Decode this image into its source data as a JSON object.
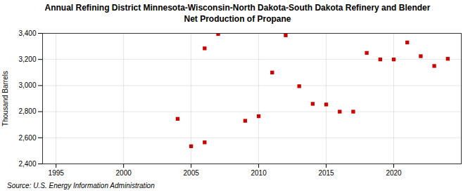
{
  "chart_data": {
    "type": "scatter",
    "title": "Annual Refining District Minnesota-Wisconsin-North Dakota-South Dakota Refinery and Blender\nNet Production of Propane",
    "ylabel": "Thousand Barrels",
    "source": "Source: U.S. Energy Information Administration",
    "x": [
      2004,
      2005,
      2006,
      2006,
      2007,
      2009,
      2010,
      2011,
      2012,
      2013,
      2014,
      2015,
      2016,
      2017,
      2018,
      2019,
      2020,
      2021,
      2022,
      2023,
      2024
    ],
    "values": [
      2745,
      2535,
      2565,
      3285,
      3395,
      2730,
      2765,
      3100,
      3385,
      2995,
      2860,
      2855,
      2800,
      2800,
      3250,
      3200,
      3200,
      3330,
      3225,
      3150,
      3205
    ],
    "color": "#cc0000",
    "marker": "square",
    "xlim": [
      1994,
      2025
    ],
    "ylim": [
      2400,
      3400
    ],
    "xticks": [
      1995,
      2000,
      2005,
      2010,
      2015,
      2020
    ],
    "yticks": [
      {
        "value": 2400,
        "label": "2,400"
      },
      {
        "value": 2600,
        "label": "2,600"
      },
      {
        "value": 2800,
        "label": "2,800"
      },
      {
        "value": 3000,
        "label": "3,000"
      },
      {
        "value": 3200,
        "label": "3,200"
      },
      {
        "value": 3400,
        "label": "3,400"
      }
    ],
    "grid": true
  }
}
